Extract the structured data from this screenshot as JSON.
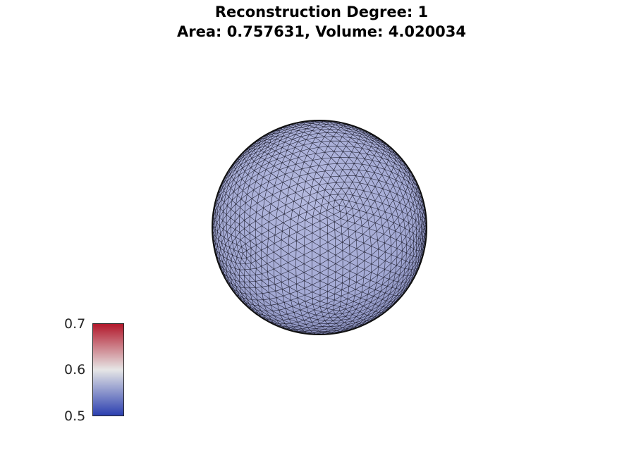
{
  "figure": {
    "title_line_1": "Reconstruction Degree: 1",
    "title_line_2": "Area: 0.757631, Volume: 4.020034"
  },
  "mesh": {
    "shape": "sphere",
    "face_color": "#a3a9d4",
    "edge_color": "#1a1a2a"
  },
  "colorbar": {
    "min": 0.5,
    "max": 0.7,
    "tick_labels": [
      "0.7",
      "0.6",
      "0.5"
    ],
    "colormap": [
      "#b2182b",
      "#e6e6e6",
      "#2b3fb0"
    ]
  }
}
